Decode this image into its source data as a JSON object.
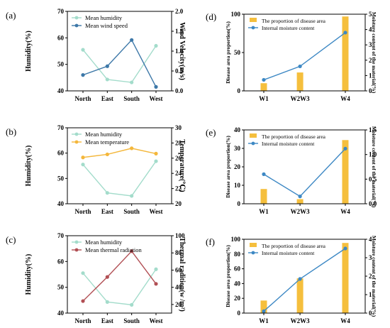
{
  "chart_data": [
    {
      "id": "a",
      "panel_label": "(a)",
      "type": "line",
      "categories": [
        "North",
        "East",
        "South",
        "West"
      ],
      "ylabel": "Humidity(%)",
      "y2label": "Wind Velocity(m/s)",
      "ylim": [
        40,
        70
      ],
      "yticks": [
        40,
        50,
        60,
        70
      ],
      "y2lim": [
        0,
        2.0
      ],
      "y2ticks": [
        "0.0",
        "0.5",
        "1.0",
        "1.5",
        "2.0"
      ],
      "legend_position": "top-left",
      "series": [
        {
          "name": "Mean humidity",
          "axis": "left",
          "color": "#a3dccb",
          "values": [
            55.5,
            44.3,
            43.2,
            57.0
          ]
        },
        {
          "name": "Mean wind speed",
          "axis": "right",
          "color": "#3d78a8",
          "values": [
            0.4,
            0.62,
            1.28,
            0.1
          ]
        }
      ]
    },
    {
      "id": "b",
      "panel_label": "(b)",
      "type": "line",
      "categories": [
        "North",
        "East",
        "South",
        "West"
      ],
      "ylabel": "Humidity(%)",
      "y2label": "Temperature(℃)",
      "ylim": [
        40,
        70
      ],
      "yticks": [
        40,
        50,
        60,
        70
      ],
      "y2lim": [
        20,
        30
      ],
      "y2ticks": [
        "20",
        "22",
        "24",
        "26",
        "28",
        "30"
      ],
      "legend_position": "top-left",
      "series": [
        {
          "name": "Mean humidity",
          "axis": "left",
          "color": "#a3dccb",
          "values": [
            55.5,
            44.3,
            43.1,
            56.8
          ]
        },
        {
          "name": "Mean temperature",
          "axis": "right",
          "color": "#f4b73b",
          "values": [
            26.1,
            26.5,
            27.3,
            26.6
          ]
        }
      ]
    },
    {
      "id": "c",
      "panel_label": "(c)",
      "type": "line",
      "categories": [
        "North",
        "East",
        "South",
        "West"
      ],
      "ylabel": "Humidity(%)",
      "y2label": "Thermal radition(w /m²)",
      "ylim": [
        40,
        70
      ],
      "yticks": [
        40,
        50,
        60,
        70
      ],
      "y2lim": [
        10,
        100
      ],
      "y2ticks": [
        "20",
        "40",
        "60",
        "80",
        "100"
      ],
      "legend_position": "top-left",
      "series": [
        {
          "name": "Mean humidity",
          "axis": "left",
          "color": "#a3dccb",
          "values": [
            55.5,
            44.3,
            43.2,
            57.0
          ]
        },
        {
          "name": "Mean thermal radiation",
          "axis": "right",
          "color": "#b14f54",
          "values": [
            24,
            52,
            82,
            44
          ]
        }
      ]
    },
    {
      "id": "d",
      "panel_label": "(d)",
      "type": "bar+line",
      "categories": [
        "W1",
        "W2W3",
        "W4"
      ],
      "xtick_positions": [
        0,
        1,
        2.25
      ],
      "ylabel": "Disease area proportion(%)",
      "y2label": "Moisture content of the material(%)",
      "ylim": [
        0,
        100
      ],
      "yticks": [
        "0",
        "50",
        "100"
      ],
      "y2lim": [
        0,
        5
      ],
      "y2ticks": [
        "0",
        "1",
        "2",
        "3",
        "4",
        "5"
      ],
      "legend_position": "top-left",
      "series": [
        {
          "name": "The proportion of disease area",
          "kind": "bar",
          "axis": "left",
          "color": "#f5bf3d",
          "values": [
            10,
            24,
            97
          ]
        },
        {
          "name": "Internal moisture content",
          "kind": "line",
          "axis": "right",
          "color": "#3d88c4",
          "values": [
            0.72,
            1.6,
            3.8
          ]
        }
      ]
    },
    {
      "id": "e",
      "panel_label": "(e)",
      "type": "bar+line",
      "categories": [
        "W1",
        "W2W3",
        "W4"
      ],
      "xtick_positions": [
        0,
        1,
        2.25
      ],
      "ylabel": "Disease area proportion(%)",
      "y2label": "Moisture content of the material(%)",
      "ylim": [
        0,
        40
      ],
      "yticks": [
        "0",
        "10",
        "20",
        "30",
        "40"
      ],
      "y2lim": [
        0,
        1.5
      ],
      "y2ticks": [
        "0.0",
        "0.5",
        "1.0",
        "1.5"
      ],
      "legend_position": "top-left",
      "series": [
        {
          "name": "The proportion of disease area",
          "kind": "bar",
          "axis": "left",
          "color": "#f5bf3d",
          "values": [
            8,
            2.5,
            34.5
          ]
        },
        {
          "name": "Internal moisture content",
          "kind": "line",
          "axis": "right",
          "color": "#3d88c4",
          "values": [
            0.6,
            0.15,
            1.12
          ]
        }
      ]
    },
    {
      "id": "f",
      "panel_label": "(f)",
      "type": "bar+line",
      "categories": [
        "W1",
        "W2W3",
        "W4"
      ],
      "xtick_positions": [
        0,
        1,
        2.25
      ],
      "ylabel": "Disease area proportion(%)",
      "y2label": "Moisture content of the material(%)",
      "ylim": [
        0,
        100
      ],
      "yticks": [
        "0",
        "20",
        "40",
        "60",
        "80",
        "100"
      ],
      "y2lim": [
        0,
        4
      ],
      "y2ticks": [
        "0",
        "1",
        "2",
        "3",
        "4"
      ],
      "legend_position": "top-left",
      "series": [
        {
          "name": "The proportion of disease area",
          "kind": "bar",
          "axis": "left",
          "color": "#f5bf3d",
          "values": [
            17,
            47,
            95
          ]
        },
        {
          "name": "Internal moisture content",
          "kind": "line",
          "axis": "right",
          "color": "#3d88c4",
          "values": [
            0.1,
            1.85,
            3.5
          ]
        }
      ]
    }
  ]
}
